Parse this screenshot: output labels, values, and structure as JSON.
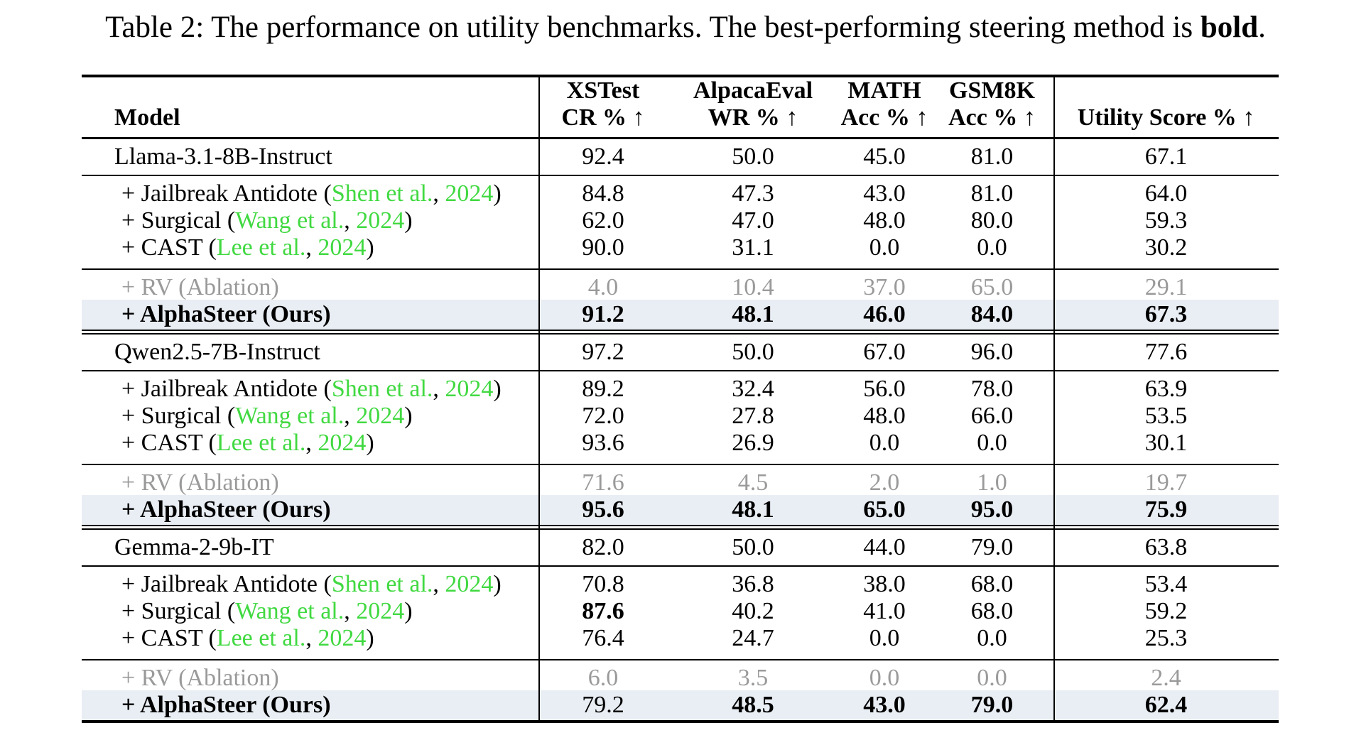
{
  "caption": {
    "lead": "Table 2: The performance on utility benchmarks. The best-performing steering method is ",
    "bold_word": "bold",
    "period": "."
  },
  "colors": {
    "citation_green": "#41d941",
    "muted_gray": "#9a9a9a",
    "highlight_band": "#e9eef4"
  },
  "header": {
    "model": "Model",
    "cols": [
      {
        "line1": "XSTest",
        "line2": "CR % ↑"
      },
      {
        "line1": "AlpacaEval",
        "line2": "WR % ↑"
      },
      {
        "line1": "MATH",
        "line2": "Acc % ↑"
      },
      {
        "line1": "GSM8K",
        "line2": "Acc % ↑"
      }
    ],
    "utility": "Utility Score % ↑"
  },
  "sections": [
    {
      "base": {
        "label": "Llama-3.1-8B-Instruct",
        "values": [
          "92.4",
          "50.0",
          "45.0",
          "81.0",
          "67.1"
        ]
      },
      "methods": [
        {
          "prefix": "+ Jailbreak Antidote (",
          "cite_author": "Shen et al.",
          "comma": ", ",
          "cite_year": "2024",
          "suffix": ")",
          "values": [
            "84.8",
            "47.3",
            "43.0",
            "81.0",
            "64.0"
          ],
          "bold": [
            false,
            false,
            false,
            false,
            false
          ]
        },
        {
          "prefix": "+ Surgical (",
          "cite_author": "Wang et al.",
          "comma": ", ",
          "cite_year": "2024",
          "suffix": ")",
          "values": [
            "62.0",
            "47.0",
            "48.0",
            "80.0",
            "59.3"
          ],
          "bold": [
            false,
            false,
            false,
            false,
            false
          ]
        },
        {
          "prefix": "+ CAST (",
          "cite_author": "Lee et al.",
          "comma": ", ",
          "cite_year": "2024",
          "suffix": ")",
          "values": [
            "90.0",
            "31.1",
            "0.0",
            "0.0",
            "30.2"
          ],
          "bold": [
            false,
            false,
            false,
            false,
            false
          ]
        }
      ],
      "rv": {
        "label": "+ RV (Ablation)",
        "values": [
          "4.0",
          "10.4",
          "37.0",
          "65.0",
          "29.1"
        ]
      },
      "ours": {
        "label": "+ AlphaSteer (Ours)",
        "values": [
          "91.2",
          "48.1",
          "46.0",
          "84.0",
          "67.3"
        ],
        "bold": [
          true,
          true,
          true,
          true,
          true
        ]
      }
    },
    {
      "base": {
        "label": "Qwen2.5-7B-Instruct",
        "values": [
          "97.2",
          "50.0",
          "67.0",
          "96.0",
          "77.6"
        ]
      },
      "methods": [
        {
          "prefix": "+ Jailbreak Antidote (",
          "cite_author": "Shen et al.",
          "comma": ", ",
          "cite_year": "2024",
          "suffix": ")",
          "values": [
            "89.2",
            "32.4",
            "56.0",
            "78.0",
            "63.9"
          ],
          "bold": [
            false,
            false,
            false,
            false,
            false
          ]
        },
        {
          "prefix": "+ Surgical (",
          "cite_author": "Wang et al.",
          "comma": ", ",
          "cite_year": "2024",
          "suffix": ")",
          "values": [
            "72.0",
            "27.8",
            "48.0",
            "66.0",
            "53.5"
          ],
          "bold": [
            false,
            false,
            false,
            false,
            false
          ]
        },
        {
          "prefix": "+ CAST (",
          "cite_author": "Lee et al.",
          "comma": ", ",
          "cite_year": "2024",
          "suffix": ")",
          "values": [
            "93.6",
            "26.9",
            "0.0",
            "0.0",
            "30.1"
          ],
          "bold": [
            false,
            false,
            false,
            false,
            false
          ]
        }
      ],
      "rv": {
        "label": "+ RV (Ablation)",
        "values": [
          "71.6",
          "4.5",
          "2.0",
          "1.0",
          "19.7"
        ]
      },
      "ours": {
        "label": "+ AlphaSteer (Ours)",
        "values": [
          "95.6",
          "48.1",
          "65.0",
          "95.0",
          "75.9"
        ],
        "bold": [
          true,
          true,
          true,
          true,
          true
        ]
      }
    },
    {
      "base": {
        "label": "Gemma-2-9b-IT",
        "values": [
          "82.0",
          "50.0",
          "44.0",
          "79.0",
          "63.8"
        ]
      },
      "methods": [
        {
          "prefix": "+ Jailbreak Antidote (",
          "cite_author": "Shen et al.",
          "comma": ", ",
          "cite_year": "2024",
          "suffix": ")",
          "values": [
            "70.8",
            "36.8",
            "38.0",
            "68.0",
            "53.4"
          ],
          "bold": [
            false,
            false,
            false,
            false,
            false
          ]
        },
        {
          "prefix": "+ Surgical (",
          "cite_author": "Wang et al.",
          "comma": ", ",
          "cite_year": "2024",
          "suffix": ")",
          "values": [
            "87.6",
            "40.2",
            "41.0",
            "68.0",
            "59.2"
          ],
          "bold": [
            true,
            false,
            false,
            false,
            false
          ]
        },
        {
          "prefix": "+ CAST (",
          "cite_author": "Lee et al.",
          "comma": ", ",
          "cite_year": "2024",
          "suffix": ")",
          "values": [
            "76.4",
            "24.7",
            "0.0",
            "0.0",
            "25.3"
          ],
          "bold": [
            false,
            false,
            false,
            false,
            false
          ]
        }
      ],
      "rv": {
        "label": "+ RV (Ablation)",
        "values": [
          "6.0",
          "3.5",
          "0.0",
          "0.0",
          "2.4"
        ]
      },
      "ours": {
        "label": "+ AlphaSteer (Ours)",
        "values": [
          "79.2",
          "48.5",
          "43.0",
          "79.0",
          "62.4"
        ],
        "bold": [
          false,
          true,
          true,
          true,
          true
        ]
      }
    }
  ]
}
